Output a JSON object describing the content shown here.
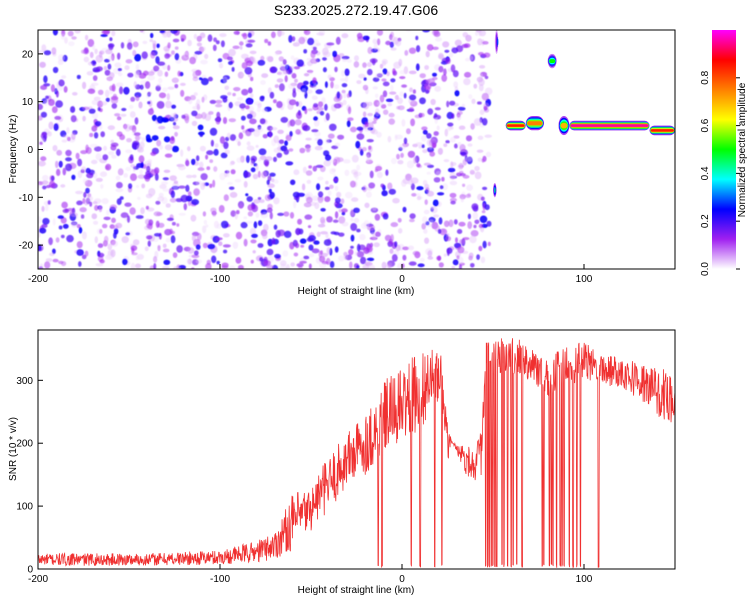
{
  "figure": {
    "title": "S233.2025.272.19.47.G06"
  },
  "chart_data": [
    {
      "type": "heatmap",
      "title": "S233.2025.272.19.47.G06",
      "xlabel": "Height of straight line (km)",
      "ylabel": "Frequency (Hz)",
      "xlim": [
        -200,
        150
      ],
      "ylim": [
        -25,
        25
      ],
      "x_ticks": [
        "-200",
        "-100",
        "0",
        "100"
      ],
      "y_ticks": [
        "20",
        "10",
        "0",
        "-10",
        "-20"
      ],
      "colorbar": {
        "label": "Normalized spectral amplitude",
        "range": [
          0.0,
          1.0
        ],
        "ticks": [
          "0.0",
          "0.2",
          "0.4",
          "0.6",
          "0.8"
        ],
        "colormap": [
          "#ffffff",
          "#a020f0",
          "#0000ff",
          "#00ffff",
          "#00ff00",
          "#ffff00",
          "#ff8000",
          "#ff0000",
          "#ff00ff"
        ]
      },
      "noise_region_x": [
        -200,
        48
      ],
      "noise_peak_amplitude": 0.25,
      "features": [
        {
          "x": [
            50,
            52
          ],
          "freq": [
            -10,
            -7
          ],
          "amplitude": 0.45
        },
        {
          "x": [
            51,
            53
          ],
          "freq": [
            20,
            25
          ],
          "amplitude": 0.3
        },
        {
          "x": [
            57,
            68
          ],
          "freq": [
            4,
            6
          ],
          "amplitude": 0.85
        },
        {
          "x": [
            68,
            78
          ],
          "freq": [
            4,
            7
          ],
          "amplitude": 0.75
        },
        {
          "x": [
            80,
            85
          ],
          "freq": [
            17,
            20
          ],
          "amplitude": 0.5
        },
        {
          "x": [
            86,
            92
          ],
          "freq": [
            3,
            7
          ],
          "amplitude": 0.7
        },
        {
          "x": [
            92,
            136
          ],
          "freq": [
            4,
            6
          ],
          "amplitude": 0.95
        },
        {
          "x": [
            136,
            150
          ],
          "freq": [
            3,
            5
          ],
          "amplitude": 0.85
        }
      ]
    },
    {
      "type": "line",
      "xlabel": "Height of straight line (km)",
      "ylabel": "SNR (10 * v/v)",
      "xlim": [
        -200,
        150
      ],
      "ylim": [
        0,
        380
      ],
      "x_ticks": [
        "-200",
        "-100",
        "0",
        "100"
      ],
      "y_ticks": [
        "300",
        "200",
        "100",
        "0"
      ],
      "color": "#f03030",
      "envelope": {
        "x": [
          -200,
          -140,
          -100,
          -80,
          -70,
          -60,
          -50,
          -45,
          -40,
          -30,
          -20,
          -13,
          -10,
          0,
          10,
          18,
          22,
          25,
          28,
          35,
          40,
          44,
          46,
          60,
          70,
          80,
          90,
          100,
          110,
          120,
          130,
          140,
          150
        ],
        "low": [
          5,
          5,
          7,
          10,
          15,
          30,
          60,
          80,
          90,
          130,
          150,
          170,
          180,
          200,
          220,
          260,
          260,
          170,
          200,
          150,
          140,
          150,
          300,
          310,
          300,
          270,
          290,
          300,
          290,
          290,
          270,
          240,
          230
        ],
        "high": [
          25,
          25,
          30,
          45,
          60,
          120,
          130,
          160,
          180,
          220,
          250,
          280,
          300,
          320,
          350,
          350,
          340,
          230,
          200,
          200,
          190,
          230,
          370,
          370,
          360,
          330,
          360,
          360,
          345,
          340,
          330,
          320,
          315
        ]
      },
      "dropouts": [
        -13,
        -11,
        5,
        10,
        18,
        22,
        46,
        47,
        48,
        49,
        50,
        51,
        52,
        55,
        56,
        58,
        60,
        61,
        63,
        66,
        77,
        78,
        81,
        82,
        83,
        85,
        87,
        88,
        89,
        92,
        94,
        96,
        98,
        108
      ]
    }
  ]
}
